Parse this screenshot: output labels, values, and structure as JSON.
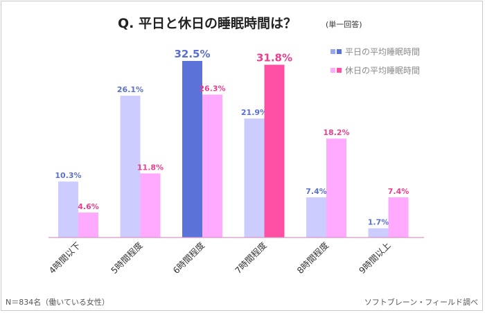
{
  "title": {
    "main": "Q.  平日と休日の睡眠時間は？",
    "sub": "(単一回答)"
  },
  "footer": {
    "note": "N＝834名（働いている女性）",
    "source": "ソフトブレーン・フィールド調べ"
  },
  "chart_data": {
    "type": "bar",
    "categories": [
      "4時間以下",
      "5時間程度",
      "6時間程度",
      "7時間程度",
      "8時間程度",
      "9時間以上"
    ],
    "series": [
      {
        "name": "平日の平均睡眠時間",
        "values": [
          10.3,
          26.1,
          32.5,
          21.9,
          7.4,
          1.7
        ],
        "labels": [
          "10.3%",
          "26.1%",
          "32.5%",
          "21.9%",
          "7.4%",
          "1.7%"
        ],
        "color": "#ccccff",
        "highlight_color": "#5b72d9",
        "label_color": "#5a6fd0",
        "highlight_index": 2
      },
      {
        "name": "休日の平均睡眠時間",
        "values": [
          4.6,
          11.8,
          26.3,
          31.8,
          18.2,
          7.4
        ],
        "labels": [
          "4.6%",
          "11.8%",
          "26.3%",
          "31.8%",
          "18.2%",
          "7.4%"
        ],
        "color": "#ffaaff",
        "highlight_color": "#ff4fa3",
        "label_color": "#e8408e",
        "highlight_index": 3
      }
    ],
    "legend": {
      "position": "top-right",
      "items": [
        {
          "label": "平日の平均睡眠時間",
          "colors": [
            "#98a8ee",
            "#5b72d9"
          ]
        },
        {
          "label": "休日の平均睡眠時間",
          "colors": [
            "#ffaaff",
            "#ff4fa3"
          ]
        }
      ]
    },
    "ylim": [
      0,
      32.5
    ],
    "grid": false,
    "baseline_color": "#d898c8"
  }
}
